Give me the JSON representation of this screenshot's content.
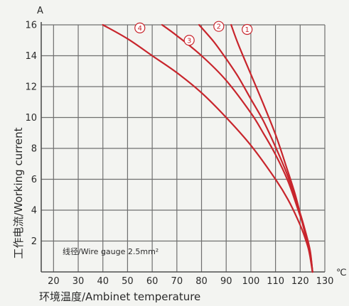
{
  "chart_data": {
    "type": "line",
    "xlabel": "环境温度/Ambinet temperature",
    "ylabel": "工作电流/Working current",
    "x_unit": "℃",
    "y_unit": "A",
    "xlim": [
      15,
      130
    ],
    "ylim": [
      0,
      16
    ],
    "x_ticks": [
      20,
      30,
      40,
      50,
      60,
      70,
      80,
      90,
      100,
      110,
      120,
      130
    ],
    "y_ticks": [
      2,
      4,
      6,
      8,
      10,
      12,
      14,
      16
    ],
    "grid": true,
    "annotation": "线径/Wire gauge 2.5mm²",
    "curve_color": "#c8252c",
    "series": [
      {
        "name": "1",
        "x": [
          92,
          95,
          100,
          105,
          110,
          114,
          118,
          121,
          123,
          124,
          125
        ],
        "y": [
          16,
          14.7,
          12.8,
          10.9,
          8.9,
          7.0,
          5.0,
          3.1,
          1.8,
          1.0,
          0
        ]
      },
      {
        "name": "2",
        "x": [
          79,
          85,
          90,
          95,
          100,
          105,
          110,
          115,
          119,
          122,
          124,
          125
        ],
        "y": [
          16,
          14.9,
          13.8,
          12.6,
          11.2,
          9.8,
          8.1,
          6.2,
          4.3,
          2.7,
          1.4,
          0
        ]
      },
      {
        "name": "3",
        "x": [
          64,
          70,
          80,
          90,
          100,
          105,
          110,
          115,
          119,
          122,
          124,
          125
        ],
        "y": [
          16,
          15.3,
          14.0,
          12.4,
          10.3,
          9.0,
          7.6,
          5.9,
          4.1,
          2.6,
          1.3,
          0
        ]
      },
      {
        "name": "4",
        "x": [
          40,
          50,
          60,
          70,
          80,
          90,
          100,
          110,
          115,
          119,
          122,
          124,
          125
        ],
        "y": [
          16,
          15.1,
          14.0,
          12.9,
          11.6,
          10.0,
          8.2,
          6.0,
          4.7,
          3.4,
          2.2,
          1.1,
          0
        ]
      }
    ],
    "curve_labels": [
      {
        "name": "1",
        "text": "①",
        "x": 98.5,
        "y": 15.7
      },
      {
        "name": "2",
        "text": "②",
        "x": 87,
        "y": 15.9
      },
      {
        "name": "3",
        "text": "③",
        "x": 75,
        "y": 15.0
      },
      {
        "name": "4",
        "text": "④",
        "x": 55,
        "y": 15.8
      }
    ]
  }
}
